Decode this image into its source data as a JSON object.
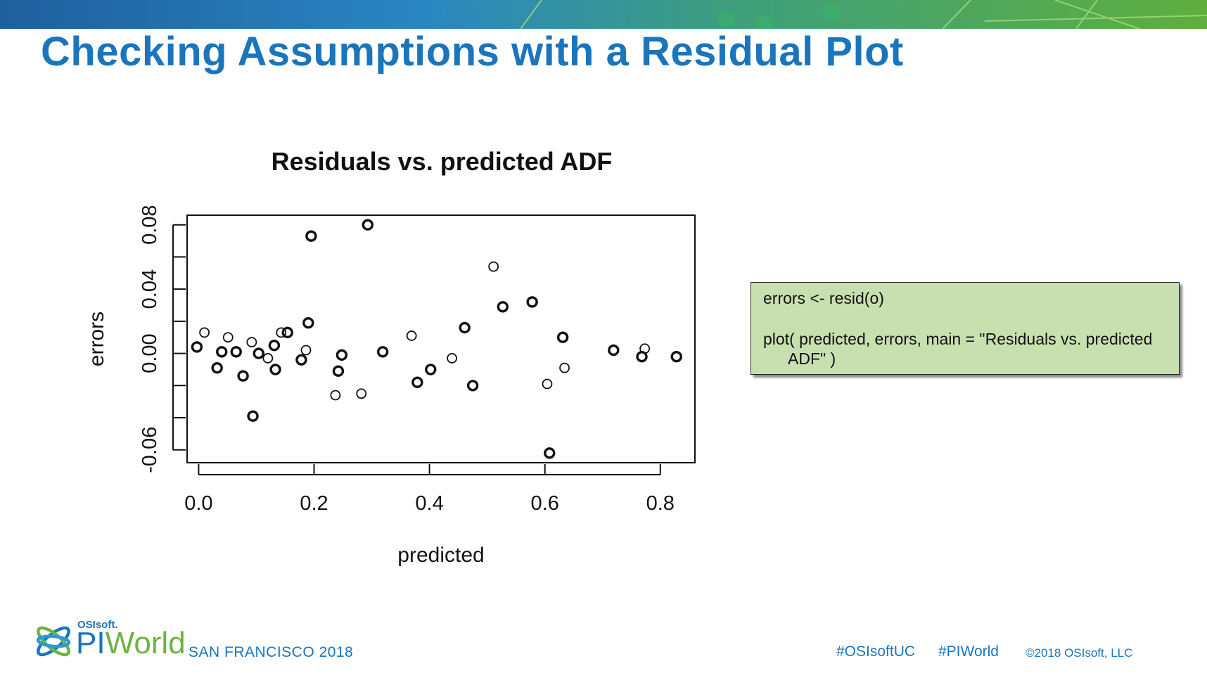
{
  "slide": {
    "title": "Checking Assumptions with a Residual Plot",
    "code_lines": [
      "errors <- resid(o)",
      "plot( predicted, errors, main = \"Residuals vs. predicted",
      "ADF\" )"
    ],
    "footer": {
      "logo_osi": "OSIsoft.",
      "logo_pi": "PI",
      "logo_world": "World",
      "location": "SAN FRANCISCO 2018",
      "hashtag1": "#OSIsoftUC",
      "hashtag2": "#PIWorld",
      "copyright": "©2018 OSIsoft, LLC"
    },
    "colors": {
      "title": "#1a75bc",
      "accent_green": "#6cb33f",
      "code_bg": "#c8e0b0"
    }
  },
  "chart_data": {
    "type": "scatter",
    "title": "Residuals vs. predicted ADF",
    "xlabel": "predicted",
    "ylabel": "errors",
    "xlim": [
      -0.02,
      0.86
    ],
    "ylim": [
      -0.068,
      0.086
    ],
    "xticks": [
      0.0,
      0.2,
      0.4,
      0.6,
      0.8
    ],
    "xtick_labels": [
      "0.0",
      "0.2",
      "0.4",
      "0.6",
      "0.8"
    ],
    "yticks": [
      -0.06,
      -0.04,
      -0.02,
      0.0,
      0.02,
      0.04,
      0.06,
      0.08
    ],
    "ytick_labels": [
      "-0.06",
      "",
      "",
      "0.00",
      "",
      "0.04",
      "",
      "0.08"
    ],
    "grid": false,
    "legend": "none",
    "points": [
      {
        "x": -0.003,
        "y": 0.004
      },
      {
        "x": 0.01,
        "y": 0.013
      },
      {
        "x": 0.032,
        "y": -0.009
      },
      {
        "x": 0.04,
        "y": 0.001
      },
      {
        "x": 0.051,
        "y": 0.01
      },
      {
        "x": 0.065,
        "y": 0.001
      },
      {
        "x": 0.077,
        "y": -0.014
      },
      {
        "x": 0.092,
        "y": 0.007
      },
      {
        "x": 0.094,
        "y": -0.039
      },
      {
        "x": 0.104,
        "y": 0.0
      },
      {
        "x": 0.12,
        "y": -0.003
      },
      {
        "x": 0.131,
        "y": 0.005
      },
      {
        "x": 0.133,
        "y": -0.01
      },
      {
        "x": 0.143,
        "y": 0.013
      },
      {
        "x": 0.154,
        "y": 0.013
      },
      {
        "x": 0.178,
        "y": -0.004
      },
      {
        "x": 0.186,
        "y": 0.002
      },
      {
        "x": 0.19,
        "y": 0.019
      },
      {
        "x": 0.195,
        "y": 0.073
      },
      {
        "x": 0.237,
        "y": -0.026
      },
      {
        "x": 0.242,
        "y": -0.011
      },
      {
        "x": 0.248,
        "y": -0.001
      },
      {
        "x": 0.282,
        "y": -0.025
      },
      {
        "x": 0.293,
        "y": 0.08
      },
      {
        "x": 0.319,
        "y": 0.001
      },
      {
        "x": 0.369,
        "y": 0.011
      },
      {
        "x": 0.379,
        "y": -0.018
      },
      {
        "x": 0.402,
        "y": -0.01
      },
      {
        "x": 0.439,
        "y": -0.003
      },
      {
        "x": 0.461,
        "y": 0.016
      },
      {
        "x": 0.475,
        "y": -0.02
      },
      {
        "x": 0.511,
        "y": 0.054
      },
      {
        "x": 0.527,
        "y": 0.029
      },
      {
        "x": 0.578,
        "y": 0.032
      },
      {
        "x": 0.604,
        "y": -0.019
      },
      {
        "x": 0.608,
        "y": -0.062
      },
      {
        "x": 0.631,
        "y": 0.01
      },
      {
        "x": 0.634,
        "y": -0.009
      },
      {
        "x": 0.719,
        "y": 0.002
      },
      {
        "x": 0.768,
        "y": -0.002
      },
      {
        "x": 0.773,
        "y": 0.003
      },
      {
        "x": 0.828,
        "y": -0.002
      }
    ]
  }
}
